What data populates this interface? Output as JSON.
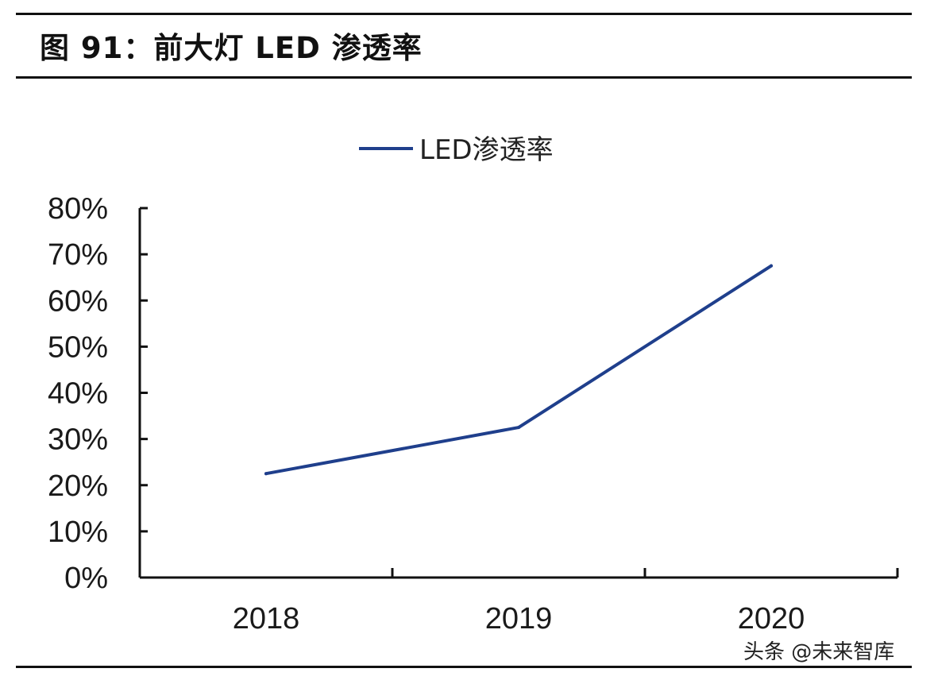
{
  "figure": {
    "title": "图 91：前大灯 LED 渗透率"
  },
  "watermark": "头条 @未来智库",
  "colors": {
    "line": "#1f3f8c",
    "axis": "#111111"
  },
  "chart_data": {
    "type": "line",
    "categories": [
      "2018",
      "2019",
      "2020"
    ],
    "series": [
      {
        "name": "LED渗透率",
        "values": [
          22.5,
          32.5,
          67.5
        ]
      }
    ],
    "ylim": [
      0,
      80
    ],
    "yticks": [
      "0%",
      "10%",
      "20%",
      "30%",
      "40%",
      "50%",
      "60%",
      "70%",
      "80%"
    ],
    "title": "",
    "xlabel": "",
    "ylabel": "",
    "grid": false,
    "legend_position": "top-center"
  }
}
